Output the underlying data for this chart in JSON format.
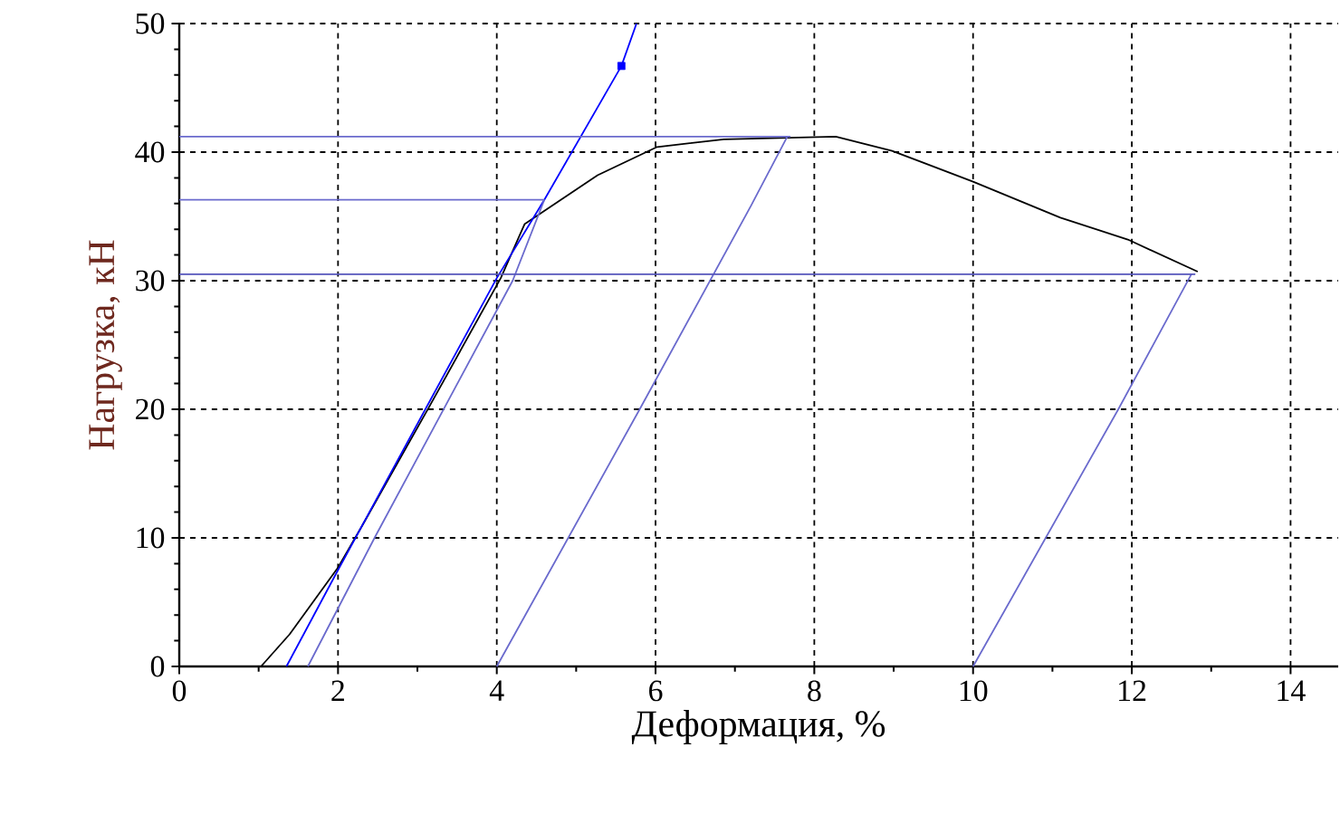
{
  "chart_data": {
    "type": "line",
    "xlabel": "Деформация, %",
    "ylabel": "Нагрузка, кН",
    "xlim": [
      0,
      14.6
    ],
    "ylim": [
      0,
      50
    ],
    "xticks": [
      0,
      2,
      4,
      6,
      8,
      10,
      12,
      14
    ],
    "yticks": [
      0,
      10,
      20,
      30,
      40,
      50
    ],
    "grid": true,
    "series": [
      {
        "color": "#000000",
        "x": [
          1.03,
          1.39,
          2.0,
          2.3,
          3.14,
          4.05,
          4.35,
          4.81,
          5.27,
          6.02,
          6.86,
          8.27,
          8.98,
          10.0,
          11.1,
          11.95,
          12.83
        ],
        "values": [
          0,
          2.5,
          7.7,
          10.9,
          20.1,
          30.2,
          34.4,
          36.3,
          38.2,
          40.4,
          41.0,
          41.2,
          40.1,
          37.7,
          34.9,
          33.2,
          30.7
        ]
      },
      {
        "color": "#0000ff",
        "x": [
          1.35,
          2.0,
          3.1,
          4.0,
          4.6,
          5.57,
          5.76
        ],
        "values": [
          0,
          7.5,
          20.0,
          30.2,
          36.3,
          46.7,
          50
        ]
      },
      {
        "color": "#6a6acd",
        "x": [
          1.62,
          2.46,
          4.2,
          4.6
        ],
        "values": [
          0,
          10,
          30,
          36.3
        ]
      },
      {
        "color": "#6a6acd",
        "x": [
          4.0,
          5.8,
          7.2,
          7.66
        ],
        "values": [
          0,
          20,
          35.8,
          41.2
        ]
      },
      {
        "color": "#6a6acd",
        "x": [
          10.0,
          11.83,
          12.75
        ],
        "values": [
          0,
          20,
          30.5
        ]
      },
      {
        "color": "#6a6acd",
        "x": [
          0,
          7.7
        ],
        "values": [
          41.2,
          41.2
        ]
      },
      {
        "color": "#6a6acd",
        "x": [
          0,
          4.6
        ],
        "values": [
          36.3,
          36.3
        ]
      },
      {
        "color": "#5555bb",
        "x": [
          0,
          12.8
        ],
        "values": [
          30.5,
          30.5
        ]
      },
      {
        "type": "scatter",
        "marker": "square",
        "color": "#0000ff",
        "x": [
          5.57
        ],
        "values": [
          46.7
        ]
      }
    ]
  }
}
